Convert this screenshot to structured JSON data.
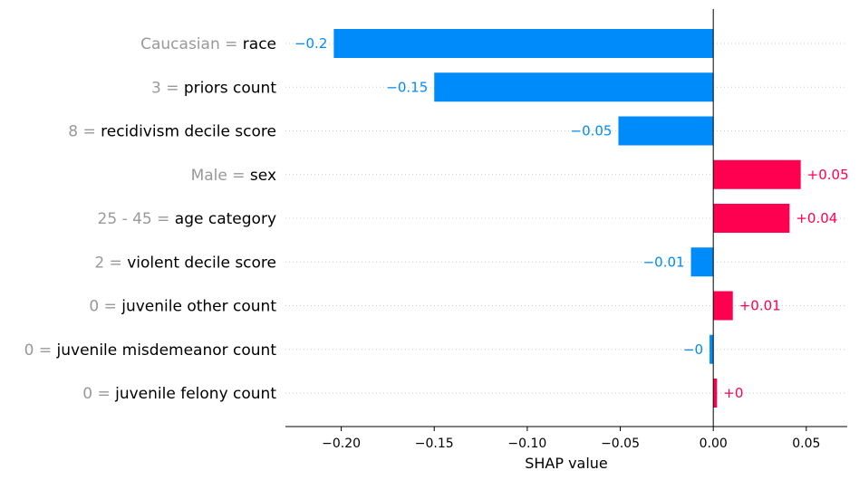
{
  "chart_data": {
    "type": "bar",
    "orientation": "horizontal",
    "xlabel": "SHAP value",
    "xlim": [
      -0.23,
      0.072
    ],
    "xticks": [
      -0.2,
      -0.15,
      -0.1,
      -0.05,
      0.0,
      0.05
    ],
    "xtick_labels": [
      "−0.20",
      "−0.15",
      "−0.10",
      "−0.05",
      "0.00",
      "0.05"
    ],
    "grid": false,
    "colors": {
      "positive": "#ff0051",
      "negative": "#008bfb",
      "feature_value": "#999999",
      "feature_name": "#000000"
    },
    "rows": [
      {
        "feature_value": "Caucasian",
        "feature": "race",
        "value": -0.204,
        "label": "−0.2"
      },
      {
        "feature_value": "3",
        "feature": "priors count",
        "value": -0.15,
        "label": "−0.15"
      },
      {
        "feature_value": "8",
        "feature": "recidivism decile score",
        "value": -0.051,
        "label": "−0.05"
      },
      {
        "feature_value": "Male",
        "feature": "sex",
        "value": 0.047,
        "label": "+0.05"
      },
      {
        "feature_value": "25 - 45",
        "feature": "age category",
        "value": 0.041,
        "label": "+0.04"
      },
      {
        "feature_value": "2",
        "feature": "violent decile score",
        "value": -0.012,
        "label": "−0.01"
      },
      {
        "feature_value": "0",
        "feature": "juvenile other count",
        "value": 0.0105,
        "label": "+0.01"
      },
      {
        "feature_value": "0",
        "feature": "juvenile misdemeanor count",
        "value": -0.002,
        "label": "−0"
      },
      {
        "feature_value": "0",
        "feature": "juvenile felony count",
        "value": 0.002,
        "label": "+0"
      }
    ]
  }
}
